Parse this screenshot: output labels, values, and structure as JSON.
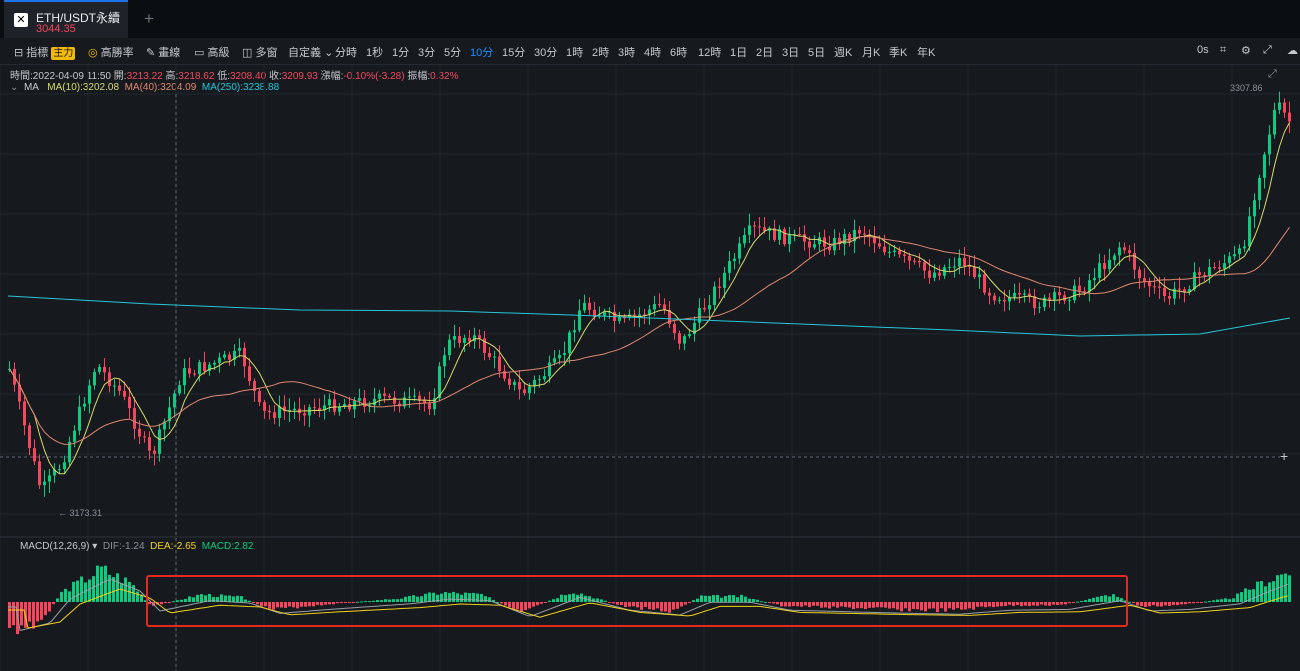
{
  "tab": {
    "logo": "okx-logo-icon",
    "title": "ETH/USDT永續",
    "price": "3044.35",
    "add_icon": "plus-icon"
  },
  "toolbar": {
    "indicator_label": "指標",
    "indicator_badge": "主力",
    "win_rate_label": "高勝率",
    "draw_label": "畫線",
    "advanced_label": "高級",
    "multi_window_label": "多窗",
    "custom_label": "自定義",
    "intervals": [
      "分時",
      "1秒",
      "1分",
      "3分",
      "5分",
      "10分",
      "15分",
      "30分",
      "1時",
      "2時",
      "3時",
      "4時",
      "6時",
      "12時",
      "1日",
      "2日",
      "3日",
      "5日",
      "週K",
      "月K",
      "季K",
      "年K"
    ],
    "active_interval": "10分",
    "countdown": "0s"
  },
  "info": {
    "time_label": "時間:",
    "time": "2022-04-09 11:50",
    "open_label": "開:",
    "open": "3213.22",
    "high_label": "高:",
    "high": "3218.62",
    "low_label": "低:",
    "low": "3208.40",
    "close_label": "收:",
    "close": "3209.93",
    "change_label": "漲幅:",
    "change": "-0.10%(-3.28)",
    "amp_label": "振幅:",
    "amp": "0.32%"
  },
  "ma": {
    "label": "MA",
    "ma10": "MA(10):3202.08",
    "ma40": "MA(40):3204.09",
    "ma250": "MA(250):3238.88"
  },
  "macd": {
    "label": "MACD(12,26,9)",
    "dif": "DIF:-1.24",
    "dea": "DEA:-2.65",
    "macd": "MACD:2.82"
  },
  "price_labels": {
    "high": "3307.86",
    "low": "← 3173.31"
  },
  "colors": {
    "up": "#0ecb81",
    "down": "#f6465d",
    "ma10": "#d9d96b",
    "ma40": "#e0876f",
    "ma250": "#26c6da",
    "accent": "#1e8cff",
    "highlight": "#e5291c"
  }
}
